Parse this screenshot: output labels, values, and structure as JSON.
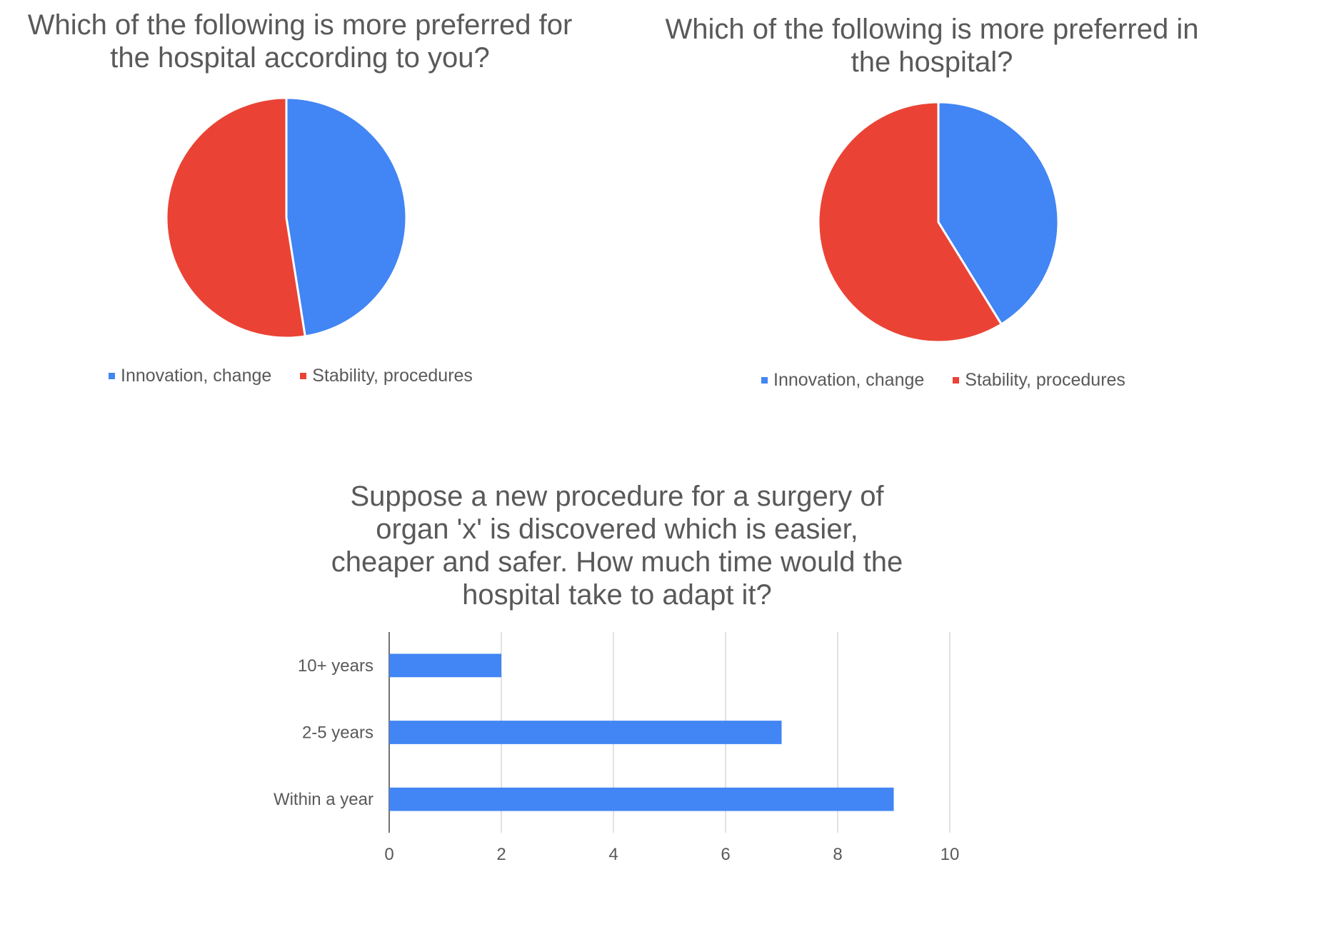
{
  "chart_data": [
    {
      "type": "pie",
      "title": "Which of the following is more preferred for the hospital according to you?",
      "categories": [
        "Innovation, change",
        "Stability, procedures"
      ],
      "values": [
        47.5,
        52.5
      ],
      "colors": [
        "#4285F4",
        "#EA4335"
      ],
      "legend_position": "bottom"
    },
    {
      "type": "pie",
      "title": "Which of the following is more preferred in the hospital?",
      "categories": [
        "Innovation, change",
        "Stability, procedures"
      ],
      "values": [
        41.2,
        58.8
      ],
      "colors": [
        "#4285F4",
        "#EA4335"
      ],
      "legend_position": "bottom"
    },
    {
      "type": "bar",
      "orientation": "horizontal",
      "title": "Suppose a new procedure for a surgery of organ 'x' is discovered which is easier, cheaper and safer. How much time would the hospital take to adapt it?",
      "categories": [
        "10+ years",
        "2-5 years",
        "Within a year"
      ],
      "values": [
        2,
        7,
        9
      ],
      "xlim": [
        0,
        10
      ],
      "xticks": [
        "0",
        "2",
        "4",
        "6",
        "8",
        "10"
      ],
      "color": "#4285F4",
      "grid": true
    }
  ]
}
